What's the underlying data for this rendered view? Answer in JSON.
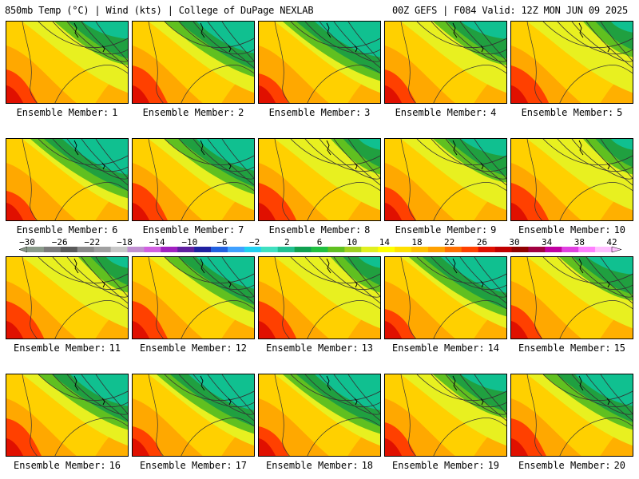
{
  "header": {
    "title_left": "850mb Temp (°C) | Wind (kts) | College of DuPage NEXLAB",
    "title_right": "00Z GEFS | F084 Valid: 12Z MON JUN 09 2025"
  },
  "panel_label_prefix": "Ensemble Member:",
  "members": [
    {
      "number": "1",
      "style": 0
    },
    {
      "number": "2",
      "style": 1
    },
    {
      "number": "3",
      "style": 2
    },
    {
      "number": "4",
      "style": 0
    },
    {
      "number": "5",
      "style": 3
    },
    {
      "number": "6",
      "style": 2
    },
    {
      "number": "7",
      "style": 1
    },
    {
      "number": "8",
      "style": 3
    },
    {
      "number": "9",
      "style": 0
    },
    {
      "number": "10",
      "style": 3
    },
    {
      "number": "11",
      "style": 3
    },
    {
      "number": "12",
      "style": 1
    },
    {
      "number": "13",
      "style": 3
    },
    {
      "number": "14",
      "style": 2
    },
    {
      "number": "15",
      "style": 0
    },
    {
      "number": "16",
      "style": 1
    },
    {
      "number": "17",
      "style": 2
    },
    {
      "number": "18",
      "style": 2
    },
    {
      "number": "19",
      "style": 0
    },
    {
      "number": "20",
      "style": 1
    }
  ],
  "colorbar": {
    "tick_labels": [
      "−30",
      "−26",
      "−22",
      "−18",
      "−14",
      "−10",
      "−6",
      "−2",
      "2",
      "6",
      "10",
      "14",
      "18",
      "22",
      "26",
      "30",
      "34",
      "38",
      "42"
    ],
    "colors": [
      "#8a9a8a",
      "#7a7a7a",
      "#5a5a5a",
      "#8a8a8a",
      "#a0a0a0",
      "#c8c8c8",
      "#c090d0",
      "#d060e0",
      "#a020c0",
      "#6020a0",
      "#2020a0",
      "#2060e0",
      "#40a0ff",
      "#20d0f0",
      "#40e0c0",
      "#20c090",
      "#10a050",
      "#20c040",
      "#60c020",
      "#a0d020",
      "#e0f020",
      "#ffff00",
      "#ffe000",
      "#ffc000",
      "#ffa000",
      "#ff7000",
      "#ff4000",
      "#e01000",
      "#c00000",
      "#900000",
      "#a00040",
      "#c000a0",
      "#e040e0",
      "#ff80ff",
      "#ffc0ff"
    ]
  }
}
